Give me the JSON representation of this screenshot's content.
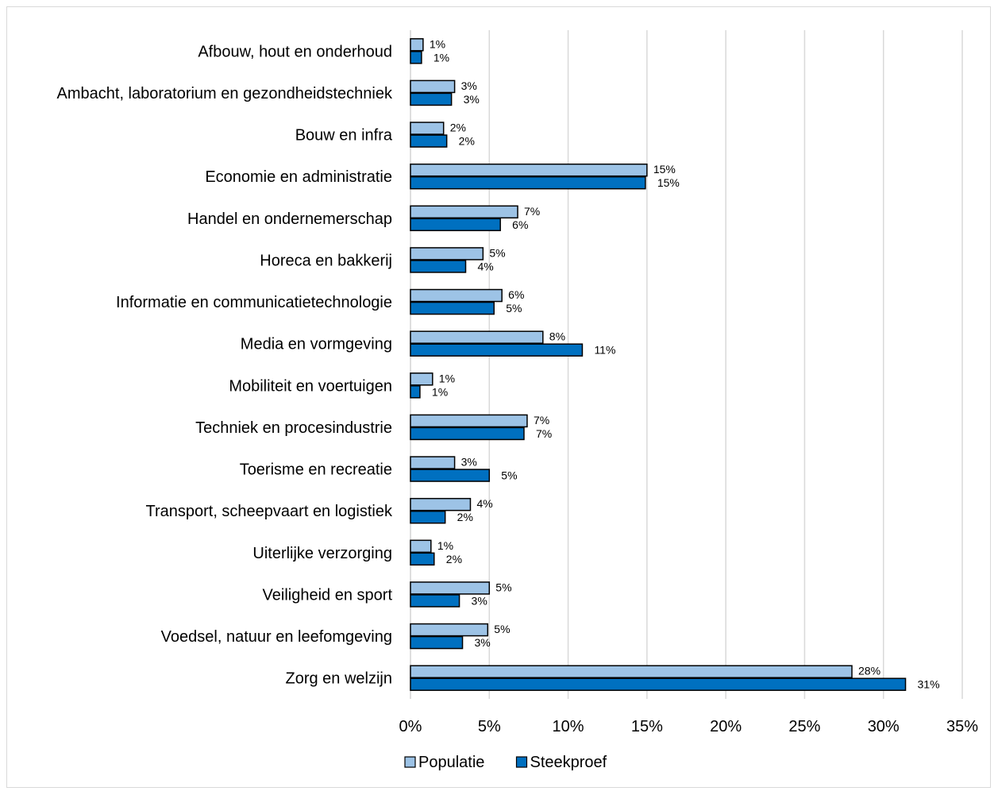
{
  "chart_data": {
    "type": "bar",
    "orientation": "horizontal",
    "categories": [
      "Afbouw, hout en onderhoud",
      "Ambacht, laboratorium en gezondheidstechniek",
      "Bouw en infra",
      "Economie en administratie",
      "Handel en ondernemerschap",
      "Horeca en bakkerij",
      "Informatie en communicatietechnologie",
      "Media en vormgeving",
      "Mobiliteit en voertuigen",
      "Techniek en procesindustrie",
      "Toerisme en recreatie",
      "Transport, scheepvaart en logistiek",
      "Uiterlijke verzorging",
      "Veiligheid en sport",
      "Voedsel, natuur en leefomgeving",
      "Zorg en welzijn"
    ],
    "series": [
      {
        "name": "Populatie",
        "color": "#9dc3e6",
        "values": [
          0.8,
          2.8,
          2.1,
          15.0,
          6.8,
          4.6,
          5.8,
          8.4,
          1.4,
          7.4,
          2.8,
          3.8,
          1.3,
          5.0,
          4.9,
          28.0
        ],
        "labels": [
          "1%",
          "3%",
          "2%",
          "15%",
          "7%",
          "5%",
          "6%",
          "8%",
          "1%",
          "7%",
          "3%",
          "4%",
          "1%",
          "5%",
          "5%",
          "28%"
        ]
      },
      {
        "name": "Steekproef",
        "color": "#0070c0",
        "values": [
          0.7,
          2.6,
          2.3,
          14.9,
          5.7,
          3.5,
          5.3,
          10.9,
          0.6,
          7.2,
          5.0,
          2.2,
          1.5,
          3.1,
          3.3,
          31.4
        ],
        "labels": [
          "1%",
          "3%",
          "2%",
          "15%",
          "6%",
          "4%",
          "5%",
          "11%",
          "1%",
          "7%",
          "5%",
          "2%",
          "2%",
          "3%",
          "3%",
          "31%"
        ]
      }
    ],
    "xlim": [
      0,
      35
    ],
    "xticks": [
      "0%",
      "5%",
      "10%",
      "15%",
      "20%",
      "25%",
      "30%",
      "35%"
    ],
    "grid": "vertical",
    "legend": "bottom"
  }
}
